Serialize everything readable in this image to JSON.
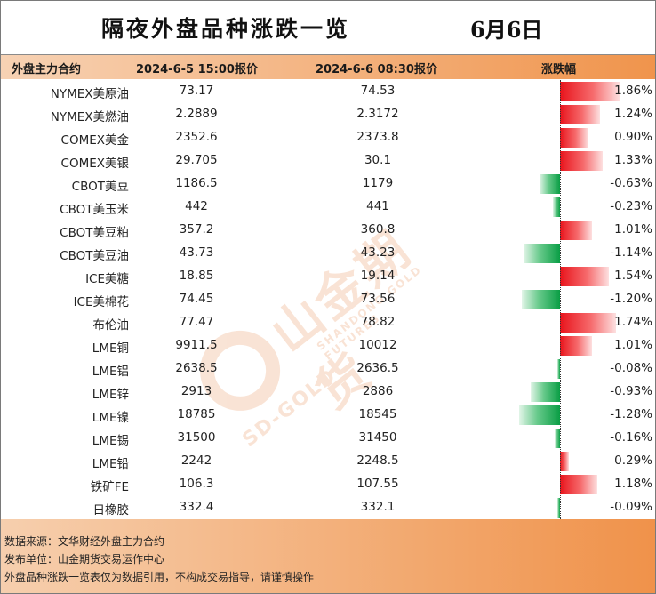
{
  "title": "隔夜外盘品种涨跌一览",
  "date": "6月6日",
  "columns": {
    "name": "外盘主力合约",
    "price1": "2024-6-5 15:00报价",
    "price2": "2024-6-6 08:30报价",
    "change": "涨跌幅"
  },
  "rows": [
    {
      "name": "NYMEX美原油",
      "p1": "73.17",
      "p2": "74.53",
      "chg": "1.86%",
      "v": 1.86
    },
    {
      "name": "NYMEX美燃油",
      "p1": "2.2889",
      "p2": "2.3172",
      "chg": "1.24%",
      "v": 1.24
    },
    {
      "name": "COMEX美金",
      "p1": "2352.6",
      "p2": "2373.8",
      "chg": "0.90%",
      "v": 0.9
    },
    {
      "name": "COMEX美银",
      "p1": "29.705",
      "p2": "30.1",
      "chg": "1.33%",
      "v": 1.33
    },
    {
      "name": "CBOT美豆",
      "p1": "1186.5",
      "p2": "1179",
      "chg": "-0.63%",
      "v": -0.63
    },
    {
      "name": "CBOT美玉米",
      "p1": "442",
      "p2": "441",
      "chg": "-0.23%",
      "v": -0.23
    },
    {
      "name": "CBOT美豆粕",
      "p1": "357.2",
      "p2": "360.8",
      "chg": "1.01%",
      "v": 1.01
    },
    {
      "name": "CBOT美豆油",
      "p1": "43.73",
      "p2": "43.23",
      "chg": "-1.14%",
      "v": -1.14
    },
    {
      "name": "ICE美糖",
      "p1": "18.85",
      "p2": "19.14",
      "chg": "1.54%",
      "v": 1.54
    },
    {
      "name": "ICE美棉花",
      "p1": "74.45",
      "p2": "73.56",
      "chg": "-1.20%",
      "v": -1.2
    },
    {
      "name": "布伦油",
      "p1": "77.47",
      "p2": "78.82",
      "chg": "1.74%",
      "v": 1.74
    },
    {
      "name": "LME铜",
      "p1": "9911.5",
      "p2": "10012",
      "chg": "1.01%",
      "v": 1.01
    },
    {
      "name": "LME铝",
      "p1": "2638.5",
      "p2": "2636.5",
      "chg": "-0.08%",
      "v": -0.08
    },
    {
      "name": "LME锌",
      "p1": "2913",
      "p2": "2886",
      "chg": "-0.93%",
      "v": -0.93
    },
    {
      "name": "LME镍",
      "p1": "18785",
      "p2": "18545",
      "chg": "-1.28%",
      "v": -1.28
    },
    {
      "name": "LME锡",
      "p1": "31500",
      "p2": "31450",
      "chg": "-0.16%",
      "v": -0.16
    },
    {
      "name": "LME铅",
      "p1": "2242",
      "p2": "2248.5",
      "chg": "0.29%",
      "v": 0.29
    },
    {
      "name": "铁矿FE",
      "p1": "106.3",
      "p2": "107.55",
      "chg": "1.18%",
      "v": 1.18
    },
    {
      "name": "日橡胶",
      "p1": "332.4",
      "p2": "332.1",
      "chg": "-0.09%",
      "v": -0.09
    }
  ],
  "footer": {
    "source": "数据来源：文华财经外盘主力合约",
    "publisher": "发布单位：山金期货交易运作中心",
    "disclaimer": "外盘品种涨跌一览表仅为数据引用，不构成交易指导，请谨慎操作"
  },
  "watermark": {
    "logo_icon": "sd-gold-logo-icon",
    "name": "山金期货",
    "english": "SHANDONG GOLD FUTURES",
    "short": "SD-GOLD",
    "color": "#e06a1c"
  },
  "colors": {
    "up": "#e8141c",
    "down": "#0a9e45",
    "accent": "#f0944c"
  }
}
